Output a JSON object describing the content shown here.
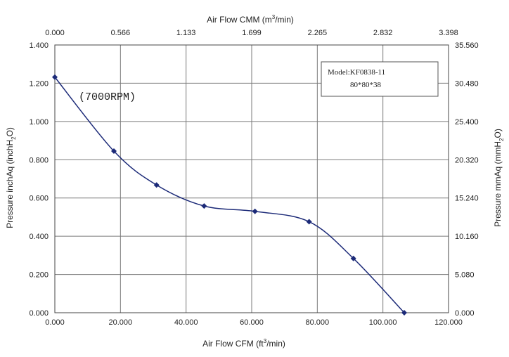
{
  "chart_data": {
    "type": "line",
    "x_bottom": {
      "label_main": "Air Flow CFM (ft",
      "label_sup": "3",
      "label_end": "/min)",
      "range": [
        0,
        120
      ],
      "ticks": [
        "0.000",
        "20.000",
        "40.000",
        "60.000",
        "80.000",
        "100.000",
        "120.000"
      ]
    },
    "x_top": {
      "label_main": "Air Flow CMM (m",
      "label_sup": "3",
      "label_end": "/min)",
      "range": [
        0,
        3.398
      ],
      "ticks": [
        "0.000",
        "0.566",
        "1.133",
        "1.699",
        "2.265",
        "2.832",
        "3.398"
      ]
    },
    "y_left": {
      "label_main": "Pressure inchAq (inchH",
      "label_sub": "2",
      "label_end": "O)",
      "range": [
        0,
        1.4
      ],
      "ticks": [
        "0.000",
        "0.200",
        "0.400",
        "0.600",
        "0.800",
        "1.000",
        "1.200",
        "1.400"
      ]
    },
    "y_right": {
      "label_main": "Pressure mmAq (mmH",
      "label_sub": "2",
      "label_end": "O)",
      "range": [
        0,
        35.56
      ],
      "ticks": [
        "0.000",
        "5.080",
        "10.160",
        "15.240",
        "20.320",
        "25.400",
        "30.480",
        "35.560"
      ]
    },
    "grid": true,
    "series": [
      {
        "x": [
          0.0,
          18.0,
          31.0,
          45.5,
          61.0,
          77.5,
          91.0,
          106.5
        ],
        "y": [
          1.232,
          0.845,
          0.668,
          0.558,
          0.53,
          0.476,
          0.284,
          0.0
        ],
        "color": "#1c2a78",
        "marker": "diamond"
      }
    ],
    "annotations": {
      "rpm": "(7000RPM)",
      "model_line1": "Model:KF0838-11",
      "model_line2": "80*80*38"
    }
  }
}
